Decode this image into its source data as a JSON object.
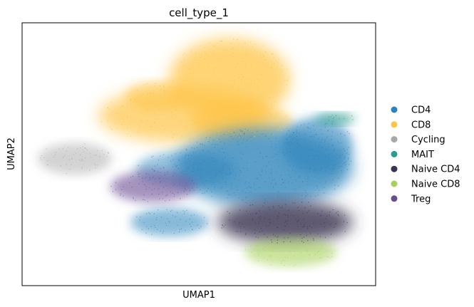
{
  "chart_data": {
    "type": "scatter",
    "title": "cell_type_1",
    "xlabel": "UMAP1",
    "ylabel": "UMAP2",
    "xticks": "none",
    "yticks": "none",
    "grid": false,
    "legend_placement": "right",
    "series": [
      {
        "name": "CD4",
        "color": "#2b83ba"
      },
      {
        "name": "CD8",
        "color": "#fdc547"
      },
      {
        "name": "Cycling",
        "color": "#a8a8a8"
      },
      {
        "name": "MAIT",
        "color": "#2a9d8f"
      },
      {
        "name": "Naive CD4",
        "color": "#3a3550"
      },
      {
        "name": "Naive CD8",
        "color": "#a6d15a"
      },
      {
        "name": "Treg",
        "color": "#6a4c93"
      }
    ]
  }
}
